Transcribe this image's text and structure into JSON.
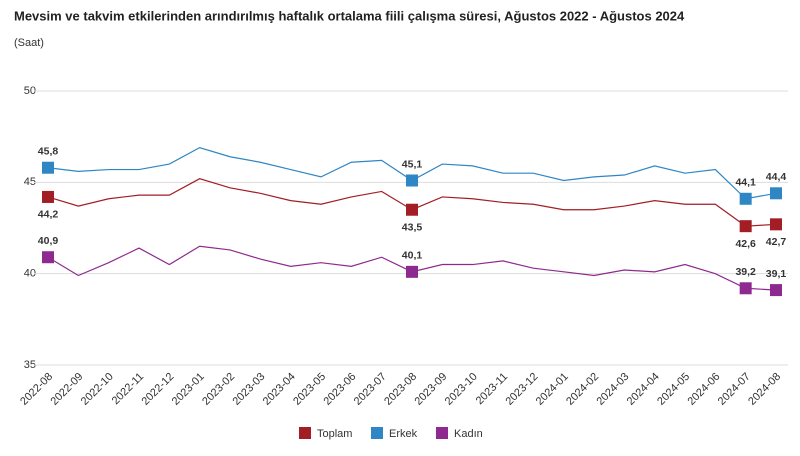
{
  "chart_data": {
    "type": "line",
    "title": "Mevsim ve takvim etkilerinden arındırılmış haftalık ortalama fiili çalışma süresi, Ağustos 2022 - Ağustos 2024",
    "subtitle": "(Saat)",
    "categories": [
      "2022-08",
      "2022-09",
      "2022-10",
      "2022-11",
      "2022-12",
      "2023-01",
      "2023-02",
      "2023-03",
      "2023-04",
      "2023-05",
      "2023-06",
      "2023-07",
      "2023-08",
      "2023-09",
      "2023-10",
      "2023-11",
      "2023-12",
      "2024-01",
      "2024-02",
      "2024-03",
      "2024-04",
      "2024-05",
      "2024-06",
      "2024-07",
      "2024-08"
    ],
    "ylim": [
      35,
      50
    ],
    "yticks": [
      35,
      40,
      45,
      50
    ],
    "grid": true,
    "series": [
      {
        "name": "Toplam",
        "color": "#a31d24",
        "values": [
          44.2,
          43.7,
          44.1,
          44.3,
          44.3,
          45.2,
          44.7,
          44.4,
          44.0,
          43.8,
          44.2,
          44.5,
          43.5,
          44.2,
          44.1,
          43.9,
          43.8,
          43.5,
          43.5,
          43.7,
          44.0,
          43.8,
          43.8,
          42.6,
          42.7
        ],
        "value_labels": [
          "44,2",
          null,
          null,
          null,
          null,
          null,
          null,
          null,
          null,
          null,
          null,
          null,
          "43,5",
          null,
          null,
          null,
          null,
          null,
          null,
          null,
          null,
          null,
          null,
          "42,6",
          "42,7"
        ]
      },
      {
        "name": "Erkek",
        "color": "#2f86c4",
        "values": [
          45.8,
          45.6,
          45.7,
          45.7,
          46.0,
          46.9,
          46.4,
          46.1,
          45.7,
          45.3,
          46.1,
          46.2,
          45.1,
          46.0,
          45.9,
          45.5,
          45.5,
          45.1,
          45.3,
          45.4,
          45.9,
          45.5,
          45.7,
          44.1,
          44.4
        ],
        "value_labels": [
          "45,8",
          null,
          null,
          null,
          null,
          null,
          null,
          null,
          null,
          null,
          null,
          null,
          "45,1",
          null,
          null,
          null,
          null,
          null,
          null,
          null,
          null,
          null,
          null,
          "44,1",
          "44,4"
        ]
      },
      {
        "name": "Kadın",
        "color": "#8e2a8f",
        "values": [
          40.9,
          39.9,
          40.6,
          41.4,
          40.5,
          41.5,
          41.3,
          40.8,
          40.4,
          40.6,
          40.4,
          40.9,
          40.1,
          40.5,
          40.5,
          40.7,
          40.3,
          40.1,
          39.9,
          40.2,
          40.1,
          40.5,
          40.0,
          39.2,
          39.1
        ],
        "value_labels": [
          "40,9",
          null,
          null,
          null,
          null,
          null,
          null,
          null,
          null,
          null,
          null,
          null,
          "40,1",
          null,
          null,
          null,
          null,
          null,
          null,
          null,
          null,
          null,
          null,
          "39,2",
          "39,1"
        ]
      }
    ]
  }
}
